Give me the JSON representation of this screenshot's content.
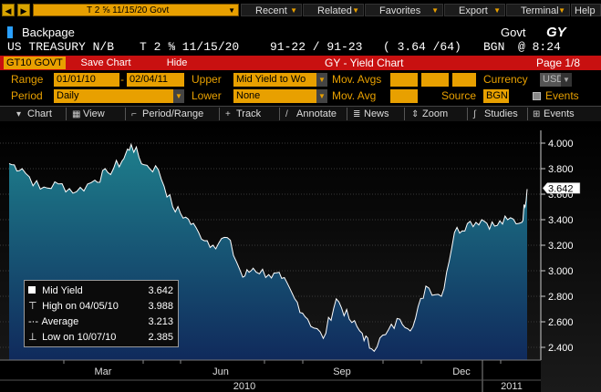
{
  "topbar": {
    "command": "T 2 ⅝ 11/15/20 Govt",
    "menus": [
      "Recent",
      "Related",
      "Favorites",
      "Export",
      "Terminal",
      "Help"
    ]
  },
  "header": {
    "backpage": "Backpage",
    "sector": "Govt",
    "function_code": "GY",
    "security_name": "US TREASURY N/B",
    "ticker": "T 2 ⅝  11/15/20",
    "price": "91-22 / 91-23",
    "yield": "( 3.64 /64)",
    "source": "BGN",
    "time": "@ 8:24"
  },
  "titlebar": {
    "security": "GT10 GOVT",
    "save_chart": "Save Chart",
    "hide": "Hide",
    "title": "GY - Yield Chart",
    "page": "Page 1/8"
  },
  "controls": {
    "range_label": "Range",
    "range_start": "01/01/10",
    "range_sep": "-",
    "range_end": "02/04/11",
    "upper_label": "Upper",
    "upper_value": "Mid Yield to Wo",
    "mov_avgs_label": "Mov. Avgs",
    "currency_label": "Currency",
    "currency_value": "USD",
    "period_label": "Period",
    "period_value": "Daily",
    "lower_label": "Lower",
    "lower_value": "None",
    "mov_avg_label": "Mov. Avg",
    "source_label": "Source",
    "source_value": "BGN",
    "events_label": "Events"
  },
  "toolbar": {
    "chart": "Chart",
    "view": "View",
    "period_range": "Period/Range",
    "track": "Track",
    "annotate": "Annotate",
    "news": "News",
    "zoom": "Zoom",
    "studies": "Studies",
    "events": "Events"
  },
  "legend": {
    "mid_label": "Mid Yield",
    "mid_value": "3.642",
    "high_label": "High on 04/05/10",
    "high_value": "3.988",
    "avg_label": "Average",
    "avg_value": "3.213",
    "low_label": "Low on 10/07/10",
    "low_value": "2.385"
  },
  "chart_data": {
    "type": "area",
    "ylim": [
      2.3,
      4.1
    ],
    "y_ticks": [
      2.4,
      2.6,
      2.8,
      3.0,
      3.2,
      3.4,
      3.6,
      3.8,
      4.0
    ],
    "y_tick_labels": [
      "2.400",
      "2.600",
      "2.800",
      "3.000",
      "3.200",
      "3.400",
      "3.600",
      "3.800",
      "4.000"
    ],
    "last_value_label": "3.642",
    "x_month_labels": [
      "Mar",
      "Jun",
      "Sep",
      "Dec"
    ],
    "x_year_labels": [
      "2010",
      "2011"
    ],
    "colors": {
      "line": "#ffffff",
      "fill_top": "#1e7f8c",
      "fill_bottom": "#102a5c"
    },
    "series": [
      {
        "x": [
          "2010-01-01",
          "2010-01-11",
          "2010-01-25",
          "2010-02-08",
          "2010-02-22",
          "2010-03-08",
          "2010-03-18",
          "2010-03-29",
          "2010-04-05",
          "2010-04-15",
          "2010-04-26",
          "2010-05-07",
          "2010-05-17",
          "2010-05-27",
          "2010-06-07",
          "2010-06-18",
          "2010-06-30",
          "2010-07-08",
          "2010-07-20",
          "2010-07-30",
          "2010-08-09",
          "2010-08-19",
          "2010-08-31",
          "2010-09-10",
          "2010-09-20",
          "2010-09-30",
          "2010-10-07",
          "2010-10-18",
          "2010-10-29",
          "2010-11-08",
          "2010-11-18",
          "2010-11-30",
          "2010-12-10",
          "2010-12-20",
          "2010-12-31",
          "2011-01-10",
          "2011-01-20",
          "2011-01-31",
          "2011-02-04"
        ],
        "y": [
          3.84,
          3.8,
          3.64,
          3.68,
          3.62,
          3.71,
          3.77,
          3.86,
          3.99,
          3.83,
          3.79,
          3.5,
          3.42,
          3.3,
          3.2,
          3.26,
          2.95,
          3.02,
          2.97,
          2.94,
          2.78,
          2.62,
          2.47,
          2.78,
          2.62,
          2.51,
          2.39,
          2.5,
          2.62,
          2.56,
          2.88,
          2.8,
          3.3,
          3.37,
          3.4,
          3.35,
          3.4,
          3.38,
          3.64
        ]
      }
    ]
  }
}
